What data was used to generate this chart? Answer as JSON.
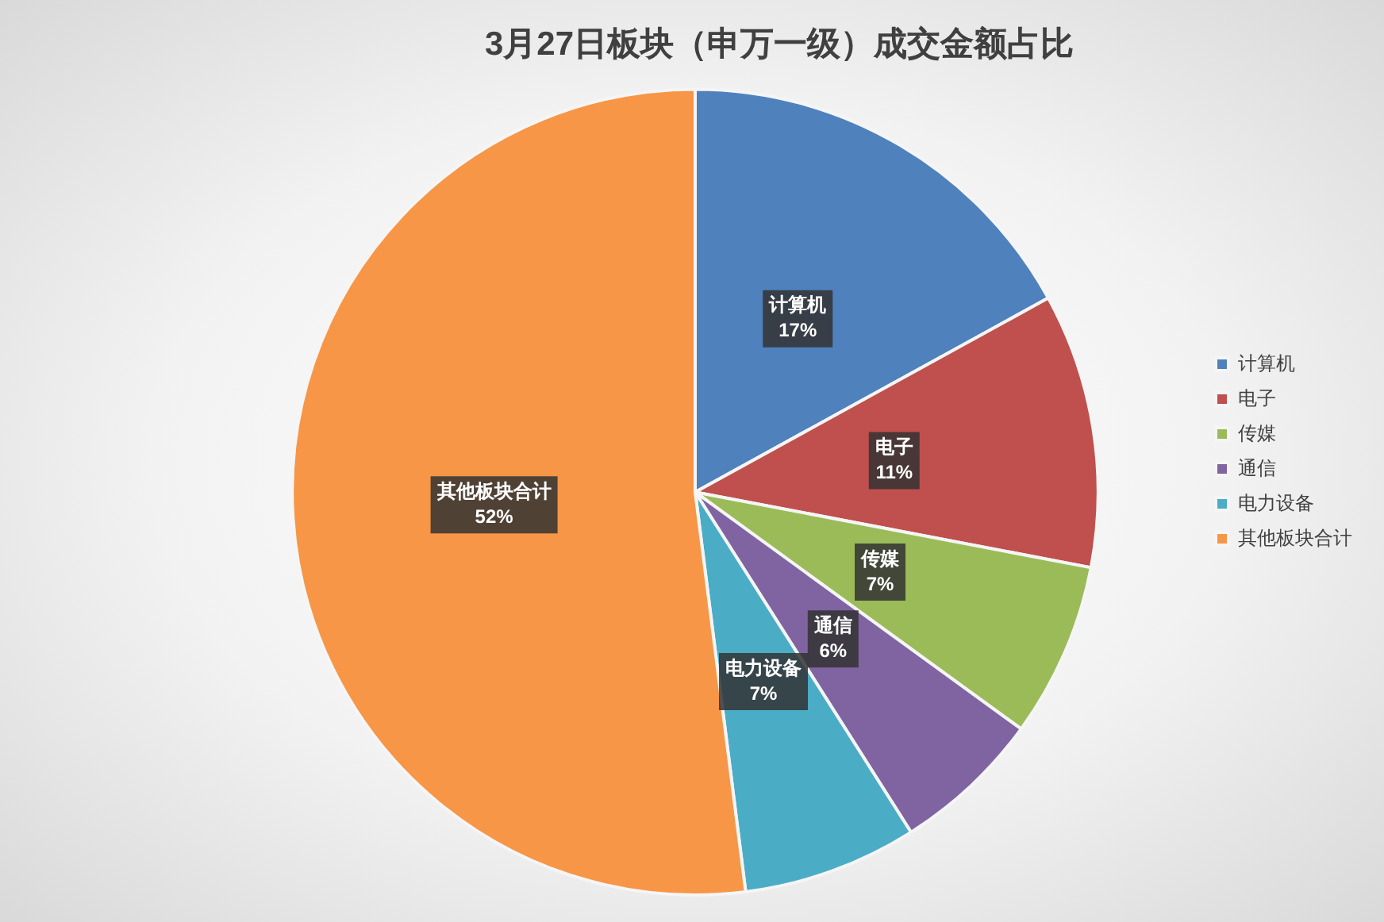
{
  "chart_data": {
    "type": "pie",
    "title": "3月27日板块（申万一级）成交金额占比",
    "categories": [
      "计算机",
      "电子",
      "传媒",
      "通信",
      "电力设备",
      "其他板块合计"
    ],
    "values": [
      17,
      11,
      7,
      6,
      7,
      52
    ],
    "value_labels": [
      "17%",
      "11%",
      "7%",
      "6%",
      "7%",
      "52%"
    ],
    "colors": [
      "#4f81bd",
      "#c0504d",
      "#9bbb59",
      "#8064a2",
      "#4bacc6",
      "#f79646"
    ],
    "legend": "right"
  }
}
